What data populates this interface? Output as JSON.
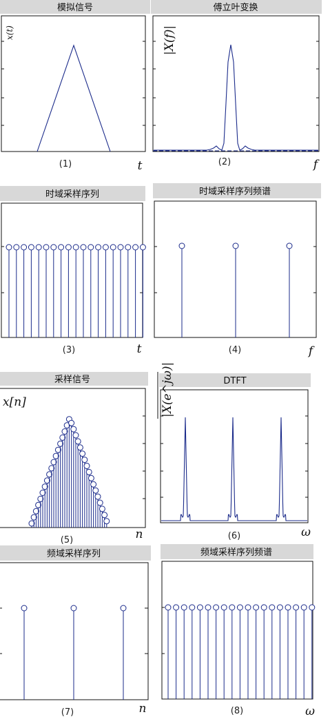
{
  "panels": [
    {
      "id": "p1",
      "title": "模拟信号",
      "caption": "(1)",
      "xvar": "t",
      "ylabel": "x(t)"
    },
    {
      "id": "p2",
      "title": "傅立叶变换",
      "caption": "(2)",
      "xvar": "f",
      "ylabel": "|X(f)|"
    },
    {
      "id": "p3",
      "title": "时域采样序列",
      "caption": "(3)",
      "xvar": "t",
      "ylabel": ""
    },
    {
      "id": "p4",
      "title": "时域采样序列频谱",
      "caption": "(4)",
      "xvar": "f",
      "ylabel": ""
    },
    {
      "id": "p5",
      "title": "采样信号",
      "caption": "(5)",
      "xvar": "n",
      "ylabel": "x[n]"
    },
    {
      "id": "p6",
      "title": "DTFT",
      "caption": "(6)",
      "xvar": "ω",
      "ylabel": "|X(e^jω)|"
    },
    {
      "id": "p7",
      "title": "频域采样序列",
      "caption": "(7)",
      "xvar": "n",
      "ylabel": ""
    },
    {
      "id": "p8",
      "title": "频域采样序列频谱",
      "caption": "(8)",
      "xvar": "ω",
      "ylabel": ""
    }
  ],
  "colors": {
    "signal": "#1a2a8a",
    "header": "#d8d8d8",
    "axis": "#111111"
  }
}
